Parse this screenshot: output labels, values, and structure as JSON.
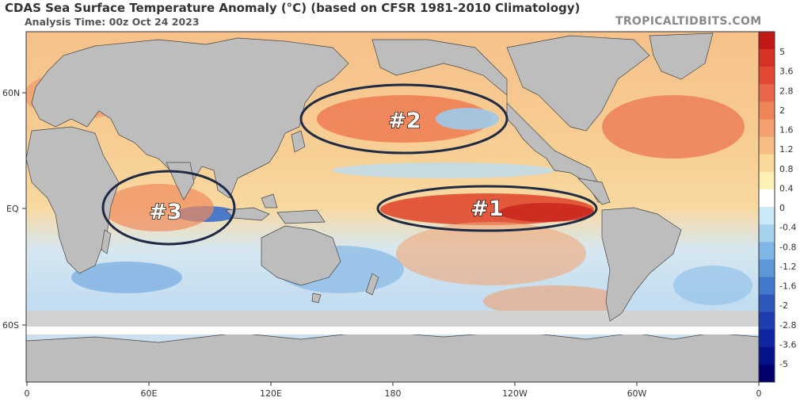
{
  "header": {
    "title": "CDAS Sea Surface Temperature Anomaly (°C) (based on CFSR 1981-2010 Climatology)",
    "analysis_time": "Analysis Time: 00z Oct 24 2023",
    "brand": "TROPICALTIDBITS.COM"
  },
  "axes": {
    "lat_labels": [
      "60N",
      "EQ",
      "60S"
    ],
    "lon_labels": [
      "0",
      "60E",
      "120E",
      "180",
      "120W",
      "60W",
      "0"
    ]
  },
  "highlights": [
    {
      "label": "#1"
    },
    {
      "label": "#2"
    },
    {
      "label": "#3"
    }
  ],
  "colorbar": {
    "labels": [
      "5",
      "3.6",
      "2.8",
      "2",
      "1.6",
      "1.2",
      "0.8",
      "0.4",
      "0",
      "-0.4",
      "-0.8",
      "-1.2",
      "-1.6",
      "-2",
      "-2.8",
      "-3.6",
      "-5"
    ],
    "colors": [
      "#c21818",
      "#d63328",
      "#e24a36",
      "#ea6648",
      "#f08459",
      "#f5a06e",
      "#f8bd84",
      "#fbd99a",
      "#fdf0b6",
      "#ffffff",
      "#c9e9f6",
      "#a5d3ef",
      "#7fb6e5",
      "#5e97da",
      "#4478cd",
      "#2e58bd",
      "#1d3cad",
      "#1026a0",
      "#05128a",
      "#000070"
    ],
    "unit": "°C"
  },
  "map": {
    "land_color": "#bdbdbd",
    "ice_color": "#d2d2d2",
    "warm_color": "#ef8a5e",
    "cool_color": "#8fc3ea"
  }
}
